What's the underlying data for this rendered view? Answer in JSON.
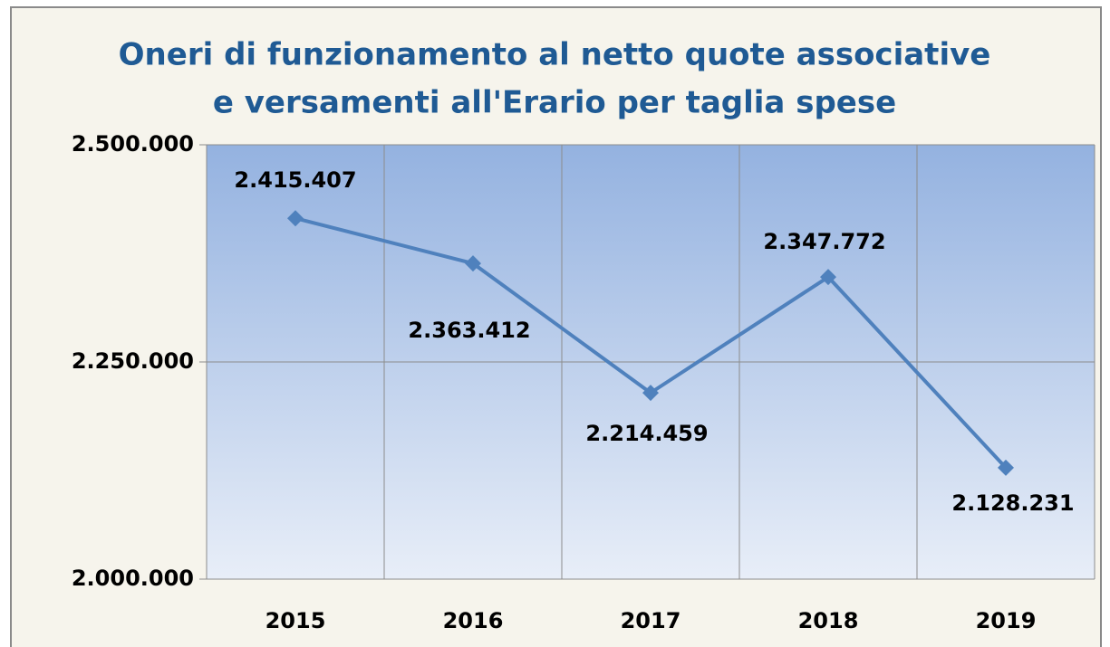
{
  "chart_data": {
    "type": "line",
    "title": [
      "Oneri di funzionamento al netto quote associative",
      "e versamenti all'Erario per taglia spese"
    ],
    "categories": [
      "2015",
      "2016",
      "2017",
      "2018",
      "2019"
    ],
    "series": [
      {
        "name": "Oneri",
        "color": "#4f81bd",
        "values": [
          2415407,
          2363412,
          2214459,
          2347772,
          2128231
        ],
        "value_labels": [
          "2.415.407",
          "2.363.412",
          "2.214.459",
          "2.347.772",
          "2.128.231"
        ]
      }
    ],
    "ylim": [
      2000000,
      2500000
    ],
    "yticks": [
      {
        "value": 2000000,
        "label": "2.000.000"
      },
      {
        "value": 2250000,
        "label": "2.250.000"
      },
      {
        "value": 2500000,
        "label": "2.500.000"
      }
    ],
    "grid": true
  }
}
